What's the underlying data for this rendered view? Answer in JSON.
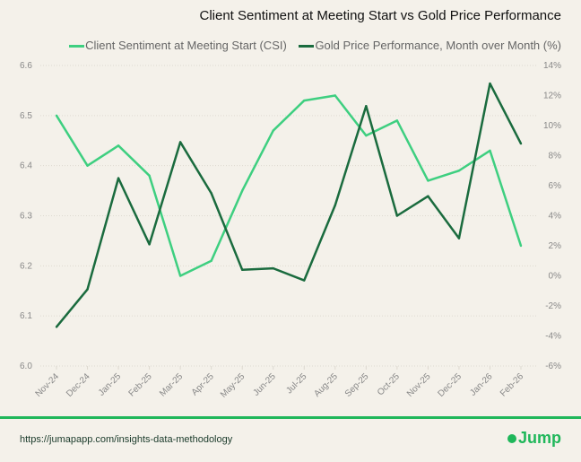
{
  "chart_data": {
    "type": "line",
    "title": "Client Sentiment at Meeting Start vs Gold Price Performance",
    "categories": [
      "Nov-24",
      "Dec-24",
      "Jan-25",
      "Feb-25",
      "Mar-25",
      "Apr-25",
      "May-25",
      "Jun-25",
      "Jul-25",
      "Aug-25",
      "Sep-25",
      "Oct-25",
      "Nov-25",
      "Dec-25",
      "Jan-26",
      "Feb-26"
    ],
    "series": [
      {
        "name": "Client Sentiment at Meeting Start (CSI)",
        "axis": "left",
        "color": "#3ecf80",
        "values": [
          6.5,
          6.4,
          6.44,
          6.38,
          6.18,
          6.21,
          6.35,
          6.47,
          6.53,
          6.54,
          6.46,
          6.49,
          6.37,
          6.39,
          6.43,
          6.24
        ]
      },
      {
        "name": "Gold Price Performance, Month over Month (%)",
        "axis": "right",
        "color": "#1a6b3e",
        "values": [
          -3.4,
          -0.9,
          6.5,
          2.1,
          8.9,
          5.5,
          0.4,
          0.5,
          -0.3,
          4.7,
          11.3,
          4.0,
          5.3,
          2.5,
          12.8,
          8.8
        ]
      }
    ],
    "y_left": {
      "range": [
        6.0,
        6.6
      ],
      "ticks": [
        "6.6",
        "6.5",
        "6.4",
        "6.3",
        "6.2",
        "6.1",
        "6.0"
      ]
    },
    "y_right": {
      "range": [
        -6,
        14
      ],
      "ticks": [
        "14%",
        "12%",
        "10%",
        "8%",
        "6%",
        "4%",
        "2%",
        "0%",
        "-2%",
        "-4%",
        "-6%"
      ]
    },
    "grid": "horizontal dotted",
    "legend": "top"
  },
  "footer": {
    "url": "https://jumapapp.com/insights-data-methodology",
    "logo": "Jump",
    "accent": "#1fb75a"
  }
}
